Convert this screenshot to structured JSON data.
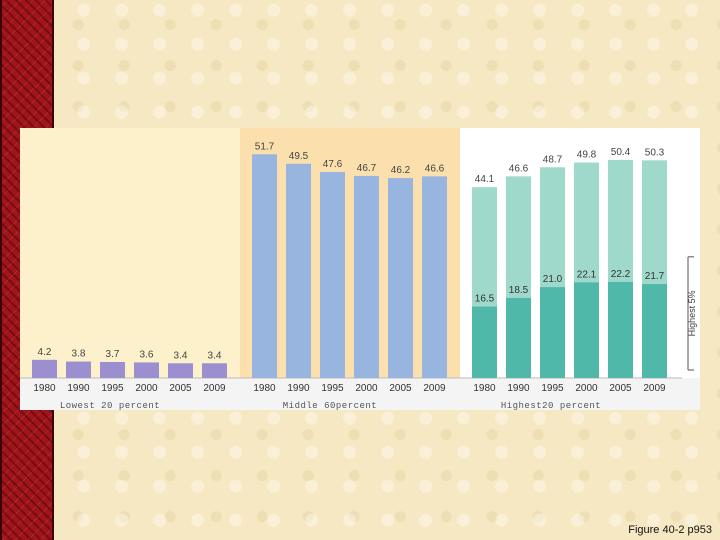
{
  "slide": {
    "caption": "Figure 40-2 p953"
  },
  "chart_data": {
    "type": "bar",
    "title": "",
    "groups": [
      {
        "name": "Lowest 20 percent",
        "categories": [
          "1980",
          "1990",
          "1995",
          "2000",
          "2005",
          "2009"
        ],
        "values": [
          4.2,
          3.8,
          3.7,
          3.6,
          3.4,
          3.4
        ],
        "color": "#9b8fd0"
      },
      {
        "name": "Middle 60percent",
        "categories": [
          "1980",
          "1990",
          "1995",
          "2000",
          "2005",
          "2009"
        ],
        "values": [
          51.7,
          49.5,
          47.6,
          46.7,
          46.2,
          46.6
        ],
        "color": "#98b5e0"
      },
      {
        "name": "Highest20 percent",
        "categories": [
          "1980",
          "1990",
          "1995",
          "2000",
          "2005",
          "2009"
        ],
        "values": [
          44.1,
          46.6,
          48.7,
          49.8,
          50.4,
          50.3
        ],
        "color": "#9fd9cb",
        "subseries": {
          "name": "Highest 5%",
          "values": [
            16.5,
            18.5,
            21.0,
            22.1,
            22.2,
            21.7
          ],
          "color": "#4fb8a8"
        }
      }
    ],
    "ylim": [
      0,
      55
    ],
    "grid": false,
    "colors": {
      "panel_lowest": "#fdf1cc",
      "panel_middle": "#fbe0ad",
      "panel_highest": "#ffffff",
      "axis_band": "#f4f4f4"
    }
  }
}
